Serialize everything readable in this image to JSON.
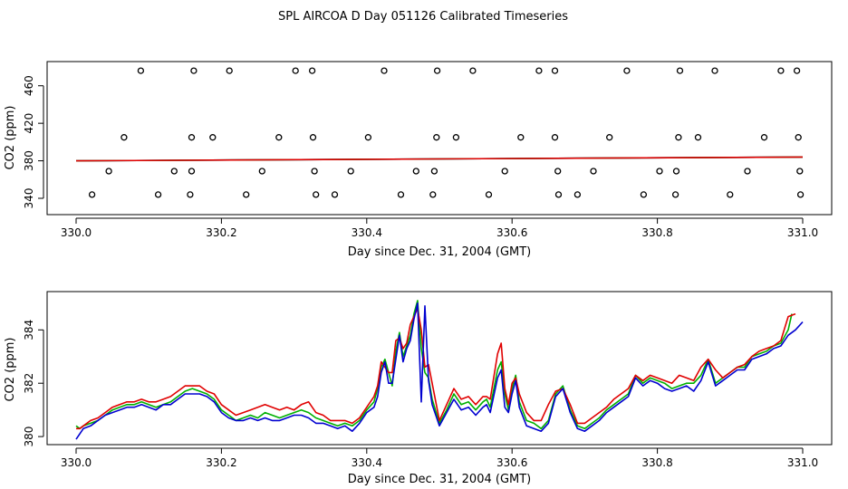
{
  "title": "SPL AIRCOA D  Day 051126  Calibrated Timeseries",
  "colors": {
    "red": "#e00000",
    "green": "#00b000",
    "blue": "#0000d0",
    "axis": "#000000"
  },
  "chart_data": [
    {
      "type": "scatter",
      "id": "top",
      "xlabel": "Day since Dec. 31, 2004 (GMT)",
      "ylabel": "CO2 (ppm)",
      "xlim": [
        330.0,
        331.0
      ],
      "ylim": [
        340,
        480
      ],
      "xticks": [
        330.0,
        330.2,
        330.4,
        330.6,
        330.8,
        331.0
      ],
      "xtick_labels": [
        "330.0",
        "330.2",
        "330.4",
        "330.6",
        "330.8",
        "331.0"
      ],
      "yticks": [
        340,
        380,
        420,
        460
      ],
      "ytick_labels": [
        "340",
        "380",
        "420",
        "460"
      ],
      "points": [
        [
          330.089,
          476
        ],
        [
          330.162,
          476
        ],
        [
          330.211,
          476
        ],
        [
          330.302,
          476
        ],
        [
          330.325,
          476
        ],
        [
          330.424,
          476
        ],
        [
          330.497,
          476
        ],
        [
          330.546,
          476
        ],
        [
          330.637,
          476
        ],
        [
          330.659,
          476
        ],
        [
          330.758,
          476
        ],
        [
          330.831,
          476
        ],
        [
          330.879,
          476
        ],
        [
          330.97,
          476
        ],
        [
          330.992,
          476
        ],
        [
          330.066,
          405
        ],
        [
          330.159,
          405
        ],
        [
          330.188,
          405
        ],
        [
          330.279,
          405
        ],
        [
          330.326,
          405
        ],
        [
          330.402,
          405
        ],
        [
          330.496,
          405
        ],
        [
          330.523,
          405
        ],
        [
          330.612,
          405
        ],
        [
          330.659,
          405
        ],
        [
          330.734,
          405
        ],
        [
          330.829,
          405
        ],
        [
          330.856,
          405
        ],
        [
          330.947,
          405
        ],
        [
          330.994,
          405
        ],
        [
          330.045,
          369
        ],
        [
          330.135,
          369
        ],
        [
          330.159,
          369
        ],
        [
          330.256,
          369
        ],
        [
          330.328,
          369
        ],
        [
          330.378,
          369
        ],
        [
          330.468,
          369
        ],
        [
          330.493,
          369
        ],
        [
          330.59,
          369
        ],
        [
          330.663,
          369
        ],
        [
          330.712,
          369
        ],
        [
          330.803,
          369
        ],
        [
          330.826,
          369
        ],
        [
          330.924,
          369
        ],
        [
          330.996,
          369
        ],
        [
          330.022,
          344
        ],
        [
          330.113,
          344
        ],
        [
          330.157,
          344
        ],
        [
          330.234,
          344
        ],
        [
          330.33,
          344
        ],
        [
          330.356,
          344
        ],
        [
          330.447,
          344
        ],
        [
          330.491,
          344
        ],
        [
          330.568,
          344
        ],
        [
          330.664,
          344
        ],
        [
          330.69,
          344
        ],
        [
          330.781,
          344
        ],
        [
          330.825,
          344
        ],
        [
          330.9,
          344
        ],
        [
          330.997,
          344
        ]
      ],
      "series": [
        {
          "name": "blue",
          "color": "#0000d0",
          "x": [
            330.0,
            331.0
          ],
          "y": [
            380,
            384
          ]
        },
        {
          "name": "green",
          "color": "#00b000",
          "x": [
            330.0,
            331.0
          ],
          "y": [
            380,
            384
          ]
        },
        {
          "name": "red",
          "color": "#e00000",
          "x": [
            330.0,
            331.0
          ],
          "y": [
            380,
            384
          ]
        }
      ]
    },
    {
      "type": "line",
      "id": "bottom",
      "xlabel": "Day since Dec. 31, 2004 (GMT)",
      "ylabel": "CO2 (ppm)",
      "xlim": [
        330.0,
        331.0
      ],
      "ylim": [
        379.8,
        385.3
      ],
      "xticks": [
        330.0,
        330.2,
        330.4,
        330.6,
        330.8,
        331.0
      ],
      "xtick_labels": [
        "330.0",
        "330.2",
        "330.4",
        "330.6",
        "330.8",
        "331.0"
      ],
      "yticks": [
        380,
        382,
        384
      ],
      "ytick_labels": [
        "380",
        "382",
        "384"
      ],
      "series": [
        {
          "name": "green",
          "color": "#00b000",
          "x": [
            330.0,
            330.005,
            330.01,
            330.02,
            330.03,
            330.04,
            330.05,
            330.06,
            330.07,
            330.08,
            330.09,
            330.1,
            330.11,
            330.12,
            330.13,
            330.14,
            330.15,
            330.16,
            330.17,
            330.18,
            330.19,
            330.2,
            330.21,
            330.22,
            330.23,
            330.24,
            330.25,
            330.26,
            330.27,
            330.28,
            330.29,
            330.3,
            330.31,
            330.32,
            330.33,
            330.34,
            330.35,
            330.36,
            330.37,
            330.38,
            330.39,
            330.4,
            330.41,
            330.415,
            330.42,
            330.425,
            330.43,
            330.435,
            330.44,
            330.445,
            330.45,
            330.455,
            330.46,
            330.465,
            330.47,
            330.475,
            330.48,
            330.485,
            330.49,
            330.5,
            330.51,
            330.52,
            330.53,
            330.54,
            330.55,
            330.56,
            330.565,
            330.57,
            330.58,
            330.585,
            330.59,
            330.595,
            330.6,
            330.605,
            330.61,
            330.62,
            330.63,
            330.64,
            330.65,
            330.66,
            330.67,
            330.68,
            330.69,
            330.7,
            330.71,
            330.72,
            330.73,
            330.74,
            330.75,
            330.76,
            330.77,
            330.78,
            330.79,
            330.8,
            330.81,
            330.82,
            330.83,
            330.84,
            330.85,
            330.86,
            330.87,
            330.88,
            330.89,
            330.9,
            330.91,
            330.92,
            330.93,
            330.94,
            330.95,
            330.96,
            330.97,
            330.98,
            330.985
          ],
          "y": [
            380.4,
            380.3,
            380.4,
            380.5,
            380.6,
            380.8,
            381.0,
            381.1,
            381.2,
            381.2,
            381.3,
            381.2,
            381.1,
            381.2,
            381.3,
            381.5,
            381.7,
            381.8,
            381.7,
            381.6,
            381.4,
            381.0,
            380.8,
            380.6,
            380.7,
            380.8,
            380.7,
            380.9,
            380.8,
            380.7,
            380.8,
            380.9,
            381.0,
            380.9,
            380.7,
            380.6,
            380.5,
            380.4,
            380.5,
            380.4,
            380.6,
            381.0,
            381.3,
            381.8,
            382.6,
            382.9,
            382.4,
            381.9,
            383.2,
            383.9,
            383.0,
            383.4,
            383.8,
            384.6,
            385.1,
            383.3,
            382.4,
            382.2,
            381.4,
            380.5,
            381.0,
            381.6,
            381.2,
            381.3,
            381.0,
            381.3,
            381.4,
            381.1,
            382.5,
            382.8,
            381.6,
            381.0,
            381.8,
            382.3,
            381.3,
            380.6,
            380.5,
            380.3,
            380.6,
            381.6,
            381.9,
            381.0,
            380.4,
            380.3,
            380.5,
            380.7,
            381.0,
            381.2,
            381.4,
            381.6,
            382.3,
            382.0,
            382.2,
            382.1,
            382.0,
            381.8,
            381.9,
            382.0,
            382.0,
            382.3,
            382.9,
            382.0,
            382.2,
            382.4,
            382.6,
            382.6,
            383.0,
            383.1,
            383.2,
            383.4,
            383.5,
            384.0,
            384.6
          ]
        },
        {
          "name": "red",
          "color": "#e00000",
          "x": [
            330.0,
            330.005,
            330.01,
            330.02,
            330.03,
            330.04,
            330.05,
            330.06,
            330.07,
            330.08,
            330.09,
            330.1,
            330.11,
            330.12,
            330.13,
            330.14,
            330.15,
            330.16,
            330.17,
            330.18,
            330.19,
            330.2,
            330.21,
            330.22,
            330.23,
            330.24,
            330.25,
            330.26,
            330.27,
            330.28,
            330.29,
            330.3,
            330.31,
            330.32,
            330.33,
            330.34,
            330.35,
            330.36,
            330.37,
            330.38,
            330.39,
            330.4,
            330.41,
            330.415,
            330.42,
            330.425,
            330.43,
            330.435,
            330.44,
            330.445,
            330.45,
            330.455,
            330.46,
            330.465,
            330.47,
            330.475,
            330.48,
            330.485,
            330.49,
            330.5,
            330.51,
            330.52,
            330.53,
            330.54,
            330.55,
            330.56,
            330.565,
            330.57,
            330.58,
            330.585,
            330.59,
            330.595,
            330.6,
            330.605,
            330.61,
            330.62,
            330.63,
            330.64,
            330.65,
            330.66,
            330.67,
            330.68,
            330.69,
            330.7,
            330.71,
            330.72,
            330.73,
            330.74,
            330.75,
            330.76,
            330.77,
            330.78,
            330.79,
            330.8,
            330.81,
            330.82,
            330.83,
            330.84,
            330.85,
            330.86,
            330.87,
            330.88,
            330.89,
            330.9,
            330.91,
            330.92,
            330.93,
            330.94,
            330.95,
            330.96,
            330.97,
            330.98,
            330.99
          ],
          "y": [
            380.3,
            380.3,
            380.4,
            380.6,
            380.7,
            380.9,
            381.1,
            381.2,
            381.3,
            381.3,
            381.4,
            381.3,
            381.3,
            381.4,
            381.5,
            381.7,
            381.9,
            381.9,
            381.9,
            381.7,
            381.6,
            381.2,
            381.0,
            380.8,
            380.9,
            381.0,
            381.1,
            381.2,
            381.1,
            381.0,
            381.1,
            381.0,
            381.2,
            381.3,
            380.9,
            380.8,
            380.6,
            380.6,
            380.6,
            380.5,
            380.7,
            381.1,
            381.5,
            381.9,
            382.8,
            382.6,
            382.4,
            382.4,
            383.6,
            383.7,
            383.3,
            383.5,
            384.2,
            384.5,
            384.8,
            384.0,
            382.6,
            382.7,
            382.0,
            380.6,
            381.2,
            381.8,
            381.4,
            381.5,
            381.2,
            381.5,
            381.5,
            381.4,
            383.1,
            383.5,
            381.8,
            381.2,
            382.0,
            382.2,
            381.6,
            380.9,
            380.6,
            380.6,
            381.2,
            381.7,
            381.8,
            381.2,
            380.5,
            380.5,
            380.7,
            380.9,
            381.1,
            381.4,
            381.6,
            381.8,
            382.3,
            382.1,
            382.3,
            382.2,
            382.1,
            382.0,
            382.3,
            382.2,
            382.1,
            382.6,
            382.9,
            382.5,
            382.2,
            382.4,
            382.6,
            382.7,
            383.0,
            383.2,
            383.3,
            383.4,
            383.6,
            384.5,
            384.6
          ]
        },
        {
          "name": "blue",
          "color": "#0000d0",
          "x": [
            330.0,
            330.005,
            330.01,
            330.02,
            330.03,
            330.04,
            330.05,
            330.06,
            330.07,
            330.08,
            330.09,
            330.1,
            330.11,
            330.12,
            330.13,
            330.14,
            330.15,
            330.16,
            330.17,
            330.18,
            330.19,
            330.2,
            330.21,
            330.22,
            330.23,
            330.24,
            330.25,
            330.26,
            330.27,
            330.28,
            330.29,
            330.3,
            330.31,
            330.32,
            330.33,
            330.34,
            330.35,
            330.36,
            330.37,
            330.38,
            330.39,
            330.4,
            330.41,
            330.415,
            330.42,
            330.425,
            330.43,
            330.435,
            330.44,
            330.445,
            330.45,
            330.455,
            330.46,
            330.465,
            330.47,
            330.475,
            330.48,
            330.485,
            330.49,
            330.5,
            330.51,
            330.52,
            330.53,
            330.54,
            330.55,
            330.56,
            330.565,
            330.57,
            330.58,
            330.585,
            330.59,
            330.595,
            330.6,
            330.605,
            330.61,
            330.62,
            330.63,
            330.64,
            330.65,
            330.66,
            330.67,
            330.68,
            330.69,
            330.7,
            330.71,
            330.72,
            330.73,
            330.74,
            330.75,
            330.76,
            330.77,
            330.78,
            330.79,
            330.8,
            330.81,
            330.82,
            330.83,
            330.84,
            330.85,
            330.86,
            330.87,
            330.88,
            330.89,
            330.9,
            330.91,
            330.92,
            330.93,
            330.94,
            330.95,
            330.96,
            330.97,
            330.98,
            330.99,
            331.0
          ],
          "y": [
            379.9,
            380.1,
            380.3,
            380.4,
            380.6,
            380.8,
            380.9,
            381.0,
            381.1,
            381.1,
            381.2,
            381.1,
            381.0,
            381.2,
            381.2,
            381.4,
            381.6,
            381.6,
            381.6,
            381.5,
            381.3,
            380.9,
            380.7,
            380.6,
            380.6,
            380.7,
            380.6,
            380.7,
            380.6,
            380.6,
            380.7,
            380.8,
            380.8,
            380.7,
            380.5,
            380.5,
            380.4,
            380.3,
            380.4,
            380.2,
            380.5,
            380.9,
            381.1,
            381.5,
            382.4,
            382.8,
            382.0,
            382.0,
            382.9,
            383.8,
            382.8,
            383.3,
            383.6,
            384.4,
            385.0,
            381.3,
            384.9,
            382.1,
            381.2,
            380.4,
            380.9,
            381.4,
            381.0,
            381.1,
            380.8,
            381.1,
            381.2,
            380.9,
            382.2,
            382.5,
            381.1,
            380.9,
            381.6,
            382.1,
            381.1,
            380.4,
            380.3,
            380.2,
            380.5,
            381.5,
            381.8,
            380.9,
            380.3,
            380.2,
            380.4,
            380.6,
            380.9,
            381.1,
            381.3,
            381.5,
            382.2,
            381.9,
            382.1,
            382.0,
            381.8,
            381.7,
            381.8,
            381.9,
            381.7,
            382.1,
            382.8,
            381.9,
            382.1,
            382.3,
            382.5,
            382.5,
            382.9,
            383.0,
            383.1,
            383.3,
            383.4,
            383.8,
            384.0,
            384.3
          ]
        }
      ]
    }
  ]
}
